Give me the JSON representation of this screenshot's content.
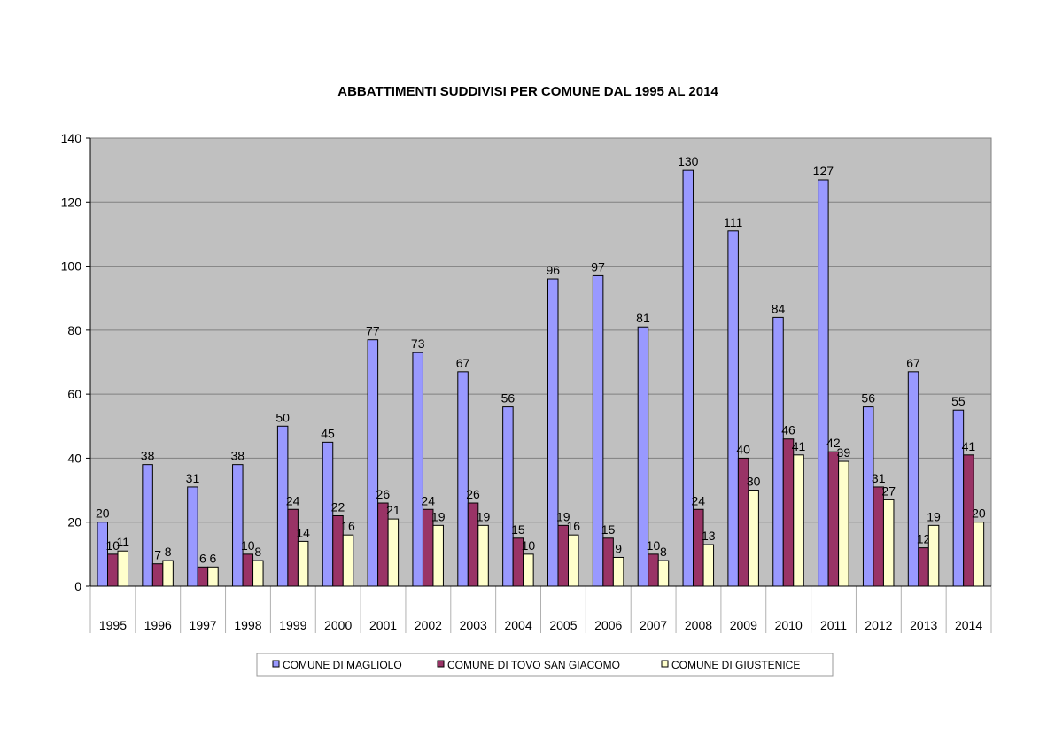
{
  "chart_data": {
    "type": "bar",
    "title": "ABBATTIMENTI SUDDIVISI PER COMUNE DAL 1995 AL 2014",
    "xlabel": "",
    "ylabel": "",
    "ylim": [
      0,
      140
    ],
    "yticks": [
      0,
      20,
      40,
      60,
      80,
      100,
      120,
      140
    ],
    "grid": true,
    "legend_position": "bottom",
    "categories": [
      "1995",
      "1996",
      "1997",
      "1998",
      "1999",
      "2000",
      "2001",
      "2002",
      "2003",
      "2004",
      "2005",
      "2006",
      "2007",
      "2008",
      "2009",
      "2010",
      "2011",
      "2012",
      "2013",
      "2014"
    ],
    "series": [
      {
        "name": "COMUNE DI MAGLIOLO",
        "color": "#9999ff",
        "values": [
          20,
          38,
          31,
          38,
          50,
          45,
          77,
          73,
          67,
          56,
          96,
          97,
          81,
          130,
          111,
          84,
          127,
          56,
          67,
          55
        ]
      },
      {
        "name": "COMUNE DI TOVO SAN GIACOMO",
        "color": "#993366",
        "values": [
          10,
          7,
          6,
          10,
          24,
          22,
          26,
          24,
          26,
          15,
          19,
          15,
          10,
          24,
          40,
          46,
          42,
          31,
          12,
          41
        ]
      },
      {
        "name": "COMUNE DI GIUSTENICE",
        "color": "#ffffcc",
        "values": [
          11,
          8,
          6,
          8,
          14,
          16,
          21,
          19,
          19,
          10,
          16,
          9,
          8,
          13,
          30,
          41,
          39,
          27,
          19,
          20
        ]
      }
    ]
  }
}
